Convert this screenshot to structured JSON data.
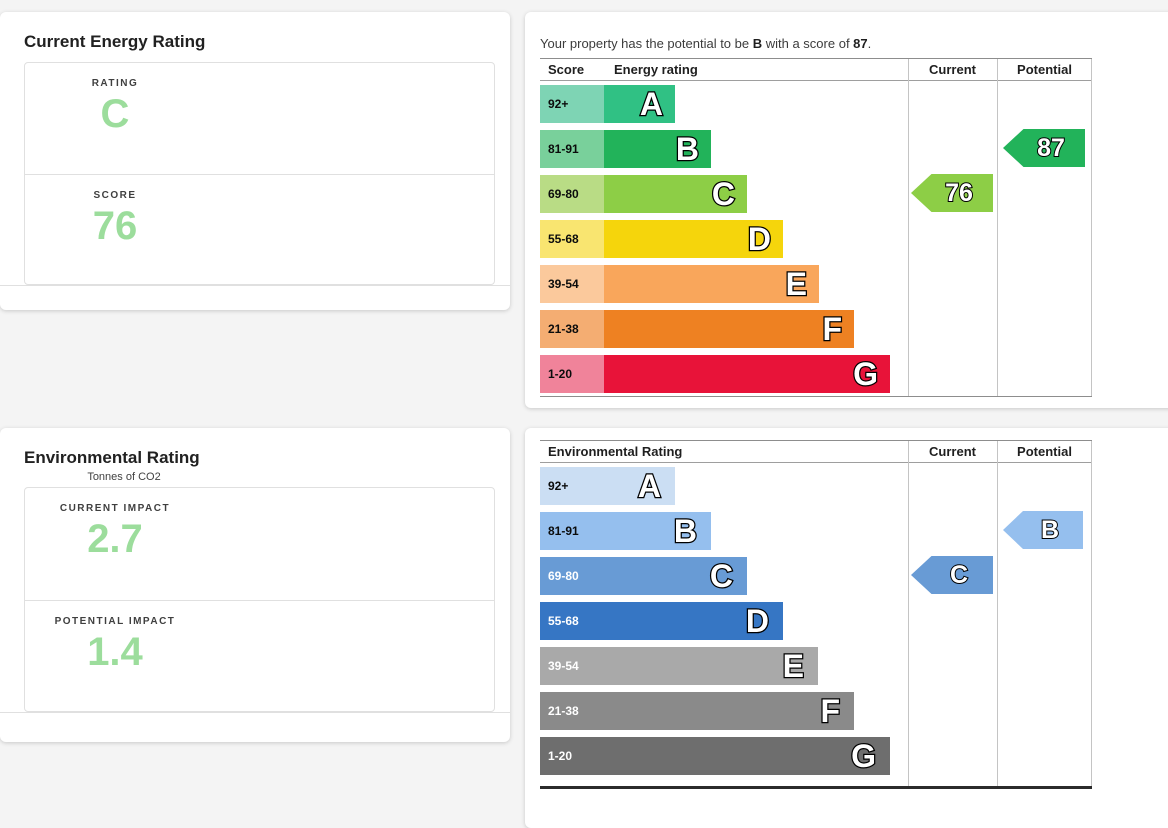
{
  "page": {
    "background": "#f4f4f4"
  },
  "energy_card": {
    "title": "Current Energy Rating",
    "rating_label": "RATING",
    "rating_value": "C",
    "score_label": "SCORE",
    "score_value": "76",
    "value_color": "#9cdd9c"
  },
  "environment_card": {
    "title": "Environmental Rating",
    "subtitle": "Tonnes of CO2",
    "current_label": "CURRENT IMPACT",
    "current_value": "2.7",
    "potential_label": "POTENTIAL IMPACT",
    "potential_value": "1.4",
    "value_color": "#9cdd9c"
  },
  "energy_chart": {
    "intro": {
      "prefix": "Your property has the potential to be ",
      "band": "B",
      "middle": " with a score of ",
      "score": "87",
      "suffix": "."
    },
    "headers": {
      "score": "Score",
      "rating": "Energy rating",
      "current": "Current",
      "potential": "Potential"
    },
    "bands": [
      {
        "range": "92+",
        "letter": "A",
        "color": "#30c184",
        "tint": "#7ed4b4"
      },
      {
        "range": "81-91",
        "letter": "B",
        "color": "#22b35a",
        "tint": "#79d09b"
      },
      {
        "range": "69-80",
        "letter": "C",
        "color": "#8dce46",
        "tint": "#b9dc85"
      },
      {
        "range": "55-68",
        "letter": "D",
        "color": "#f5d50c",
        "tint": "#f9e570"
      },
      {
        "range": "39-54",
        "letter": "E",
        "color": "#f9a65b",
        "tint": "#fbc99c"
      },
      {
        "range": "21-38",
        "letter": "F",
        "color": "#ee8122",
        "tint": "#f4ad72"
      },
      {
        "range": "1-20",
        "letter": "G",
        "color": "#e81339",
        "tint": "#f0839a"
      }
    ],
    "current": {
      "value": "76",
      "band": "C",
      "color": "#8dce46"
    },
    "potential": {
      "value": "87",
      "band": "B",
      "color": "#22b35a"
    }
  },
  "environment_chart": {
    "headers": {
      "rating": "Environmental Rating",
      "current": "Current",
      "potential": "Potential"
    },
    "bands": [
      {
        "range": "92+",
        "letter": "A",
        "color": "#cbdef3",
        "text": "#0b0c0c"
      },
      {
        "range": "81-91",
        "letter": "B",
        "color": "#95bfee",
        "text": "#0b0c0c"
      },
      {
        "range": "69-80",
        "letter": "C",
        "color": "#689bd5",
        "text": "#ffffff"
      },
      {
        "range": "55-68",
        "letter": "D",
        "color": "#3676c4",
        "text": "#ffffff"
      },
      {
        "range": "39-54",
        "letter": "E",
        "color": "#a9a9a9",
        "text": "#ffffff"
      },
      {
        "range": "21-38",
        "letter": "F",
        "color": "#8a8a8a",
        "text": "#ffffff"
      },
      {
        "range": "1-20",
        "letter": "G",
        "color": "#6e6e6e",
        "text": "#ffffff"
      }
    ],
    "current": {
      "value": "C",
      "band": "C",
      "color": "#689bd5"
    },
    "potential": {
      "value": "B",
      "band": "B",
      "color": "#95bfee"
    }
  },
  "chart_data": [
    {
      "type": "bar",
      "title": "Energy rating",
      "categories": [
        "A",
        "B",
        "C",
        "D",
        "E",
        "F",
        "G"
      ],
      "score_ranges": [
        "92+",
        "81-91",
        "69-80",
        "55-68",
        "39-54",
        "21-38",
        "1-20"
      ],
      "bar_lengths_relative": [
        1,
        2,
        3,
        4,
        5,
        6,
        7
      ],
      "current": {
        "score": 76,
        "band": "C"
      },
      "potential": {
        "score": 87,
        "band": "B"
      },
      "annotation": "Your property has the potential to be B with a score of 87.",
      "legend_position": "none",
      "grid": false
    },
    {
      "type": "bar",
      "title": "Environmental Rating",
      "unit": "Tonnes of CO2",
      "categories": [
        "A",
        "B",
        "C",
        "D",
        "E",
        "F",
        "G"
      ],
      "score_ranges": [
        "92+",
        "81-91",
        "69-80",
        "55-68",
        "39-54",
        "21-38",
        "1-20"
      ],
      "bar_lengths_relative": [
        1,
        2,
        3,
        4,
        5,
        6,
        7
      ],
      "current": {
        "band": "C",
        "impact_tonnes_co2": 2.7
      },
      "potential": {
        "band": "B",
        "impact_tonnes_co2": 1.4
      },
      "legend_position": "none",
      "grid": false
    }
  ]
}
